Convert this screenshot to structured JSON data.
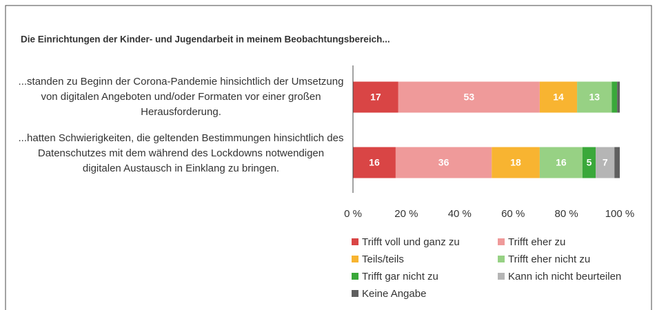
{
  "chart_data": {
    "type": "stacked_barh",
    "title": "Die Einrichtungen der Kinder- und Jugendarbeit in meinem Beobachtungsbereich...",
    "categories": [
      "...standen zu Beginn der Corona-Pandemie hinsichtlich der Umsetzung von digitalen Angeboten und/oder Formaten vor einer großen Herausforderung.",
      "...hatten Schwierigkeiten, die geltenden Bestimmungen hinsichtlich des Datenschutzes mit dem während des Lockdowns notwendigen digitalen Austausch in Einklang zu bringen."
    ],
    "series": [
      {
        "name": "Trifft voll und ganz zu",
        "color": "#d94545",
        "values": [
          17,
          16
        ],
        "value_labels": [
          "17",
          "16"
        ]
      },
      {
        "name": "Trifft eher zu",
        "color": "#ef9a9a",
        "values": [
          53,
          36
        ],
        "value_labels": [
          "53",
          "36"
        ]
      },
      {
        "name": "Teils/teils",
        "color": "#f8b431",
        "values": [
          14,
          18
        ],
        "value_labels": [
          "14",
          "18"
        ]
      },
      {
        "name": "Trifft eher nicht zu",
        "color": "#97d184",
        "values": [
          13,
          16
        ],
        "value_labels": [
          "13",
          "16"
        ]
      },
      {
        "name": "Trifft gar nicht zu",
        "color": "#3aa83a",
        "values": [
          2,
          5
        ],
        "value_labels": [
          null,
          "5"
        ]
      },
      {
        "name": "Kann ich nicht beurteilen",
        "color": "#b5b5b5",
        "values": [
          0,
          7
        ],
        "value_labels": [
          null,
          "7"
        ]
      },
      {
        "name": "Keine Angabe",
        "color": "#5f5f5f",
        "values": [
          1,
          2
        ],
        "value_labels": [
          null,
          null
        ]
      }
    ],
    "xlim": [
      0,
      100
    ],
    "xticks": [
      {
        "value": 0,
        "label": "0 %"
      },
      {
        "value": 20,
        "label": "20 %"
      },
      {
        "value": 40,
        "label": "40 %"
      },
      {
        "value": 60,
        "label": "60 %"
      },
      {
        "value": 80,
        "label": "80 %"
      },
      {
        "value": 100,
        "label": "100 %"
      }
    ],
    "legend": "bottom"
  }
}
